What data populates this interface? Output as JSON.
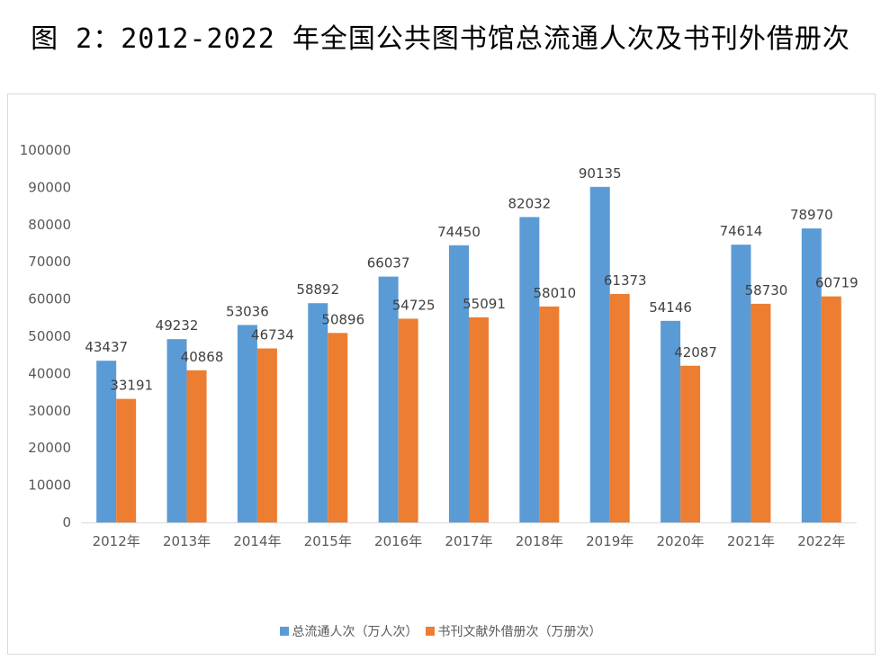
{
  "title": "图 2：2012-2022 年全国公共图书馆总流通人次及书刊外借册次",
  "chart_data": {
    "type": "bar",
    "title": "图 2：2012-2022 年全国公共图书馆总流通人次及书刊外借册次",
    "xlabel": "",
    "ylabel": "",
    "ylim": [
      0,
      100000
    ],
    "yticks": [
      "0",
      "10000",
      "20000",
      "30000",
      "40000",
      "50000",
      "60000",
      "70000",
      "80000",
      "90000",
      "100000"
    ],
    "grid": false,
    "legend_position": "bottom",
    "categories": [
      "2012年",
      "2013年",
      "2014年",
      "2015年",
      "2016年",
      "2017年",
      "2018年",
      "2019年",
      "2020年",
      "2021年",
      "2022年"
    ],
    "series": [
      {
        "name": "总流通人次（万人次）",
        "color": "#5B9BD5",
        "values": [
          43437,
          49232,
          53036,
          58892,
          66037,
          74450,
          82032,
          90135,
          54146,
          74614,
          78970
        ]
      },
      {
        "name": "书刊文献外借册次（万册次）",
        "color": "#ED7D31",
        "values": [
          33191,
          40868,
          46734,
          50896,
          54725,
          55091,
          58010,
          61373,
          42087,
          58730,
          60719
        ]
      }
    ]
  }
}
